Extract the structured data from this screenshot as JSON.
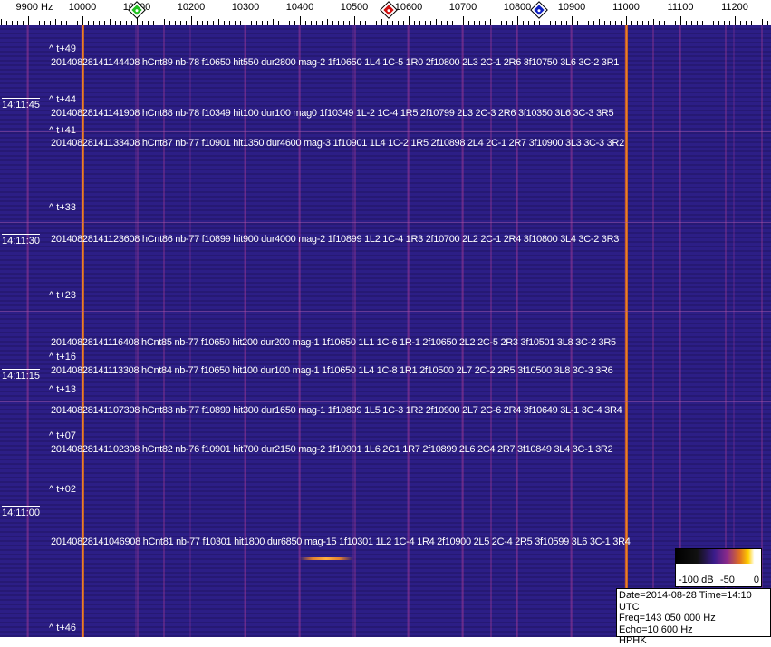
{
  "axis": {
    "unit_label": "9900 Hz",
    "ticks": [
      "10000",
      "10100",
      "10200",
      "10300",
      "10400",
      "10500",
      "10600",
      "10700",
      "10800",
      "10900",
      "11000",
      "11100",
      "11200"
    ],
    "markers": [
      {
        "name": "green-marker",
        "freq": 10100,
        "color": "#22c022"
      },
      {
        "name": "red-marker",
        "freq": 10563,
        "color": "#d01010"
      },
      {
        "name": "blue-marker",
        "freq": 10840,
        "color": "#1020c0"
      }
    ]
  },
  "detections": [
    "20140828141144408 hCnt89 nb-78 f10650 hit550 dur2800 mag-2 1f10650 1L4 1C-5 1R0 2f10800 2L3 2C-1 2R6 3f10750 3L6 3C-2 3R1",
    "20140828141141908 hCnt88 nb-78 f10349 hit100 dur100 mag0 1f10349 1L-2 1C-4 1R5 2f10799 2L3 2C-3 2R6 3f10350 3L6 3C-3 3R5",
    "20140828141133408 hCnt87 nb-77 f10901 hit1350 dur4600 mag-3 1f10901 1L4 1C-2 1R5 2f10898 2L4 2C-1 2R7 3f10900 3L3 3C-3 3R2",
    "20140828141123608 hCnt86 nb-77 f10899 hit900 dur4000 mag-2 1f10899 1L2 1C-4 1R3 2f10700 2L2 2C-1 2R4 3f10800 3L4 3C-2 3R3",
    "20140828141116408 hCnt85 nb-77 f10650 hit200 dur200 mag-1 1f10650 1L1 1C-6 1R-1 2f10650 2L2 2C-5 2R3 3f10501 3L8 3C-2 3R5",
    "20140828141113308 hCnt84 nb-77 f10650 hit100 dur100 mag-1 1f10650 1L4 1C-8 1R1 2f10500 2L7 2C-2 2R5 3f10500 3L8 3C-3 3R6",
    "20140828141107308 hCnt83 nb-77 f10899 hit300 dur1650 mag-1 1f10899 1L5 1C-3 1R2 2f10900 2L7 2C-6 2R4 3f10649 3L-1 3C-4 3R4",
    "20140828141102308 hCnt82 nb-76 f10901 hit700 dur2150 mag-2 1f10901 1L6 2C1 1R7 2f10899 2L6 2C4 2R7 3f10849 3L4 3C-1 3R2",
    "20140828141046908 hCnt81 nb-77 f10301 hit1800 dur6850 mag-15 1f10301 1L2 1C-4 1R4 2f10900 2L5 2C-4 2R5 3f10599 3L6 3C-1 3R4"
  ],
  "time_offsets": [
    "^ t+49",
    "^ t+44",
    "^ t+41",
    "^ t+33",
    "^ t+23",
    "^ t+16",
    "^ t+13",
    "^ t+07",
    "^ t+02",
    "^ t+46"
  ],
  "time_labels": [
    "14:11:45",
    "14:11:30",
    "14:11:15",
    "14:11:00"
  ],
  "scale": {
    "min_label": "-100 dB",
    "mid_label": "-50",
    "max_label": "0"
  },
  "info": {
    "date": "Date=2014-08-28 Time=14:10 UTC",
    "freq": "Freq=143 050 000 Hz",
    "echo": "Echo=10 600 Hz",
    "station": "HPHK"
  }
}
